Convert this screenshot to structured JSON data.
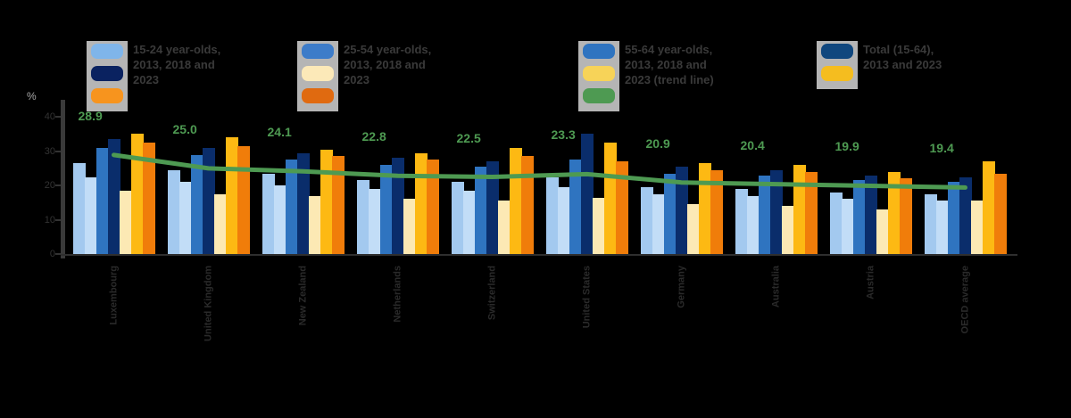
{
  "chart_data": {
    "type": "bar",
    "title": "",
    "xlabel": "",
    "ylabel": "%",
    "ylim": [
      0,
      45
    ],
    "yticks": [
      40,
      30,
      20,
      10,
      0
    ],
    "grid": false,
    "legend_position": "top",
    "categories": [
      "Luxembourg",
      "United Kingdom",
      "New Zealand",
      "Netherlands",
      "Switzerland",
      "United States",
      "Germany",
      "Australia",
      "Austria",
      "OECD average"
    ],
    "series": [
      {
        "name": "light-blue-bar",
        "color": "#A3C9EF",
        "values": [
          26.5,
          24.5,
          23.5,
          21.5,
          21.0,
          22.5,
          19.5,
          19.0,
          18.0,
          17.5
        ]
      },
      {
        "name": "pale-blue-bar",
        "color": "#C2DDF7",
        "values": [
          22.5,
          21.0,
          20.0,
          19.0,
          18.5,
          19.5,
          17.5,
          17.0,
          16.0,
          15.5
        ]
      },
      {
        "name": "medium-blue-bar",
        "color": "#2F74C0",
        "values": [
          31.0,
          29.0,
          27.5,
          26.0,
          25.5,
          27.5,
          23.5,
          23.0,
          21.5,
          21.0
        ]
      },
      {
        "name": "navy-bar",
        "color": "#0A2D6B",
        "values": [
          33.5,
          31.0,
          29.5,
          28.0,
          27.0,
          35.0,
          25.5,
          24.5,
          23.0,
          22.5
        ]
      },
      {
        "name": "cream-bar",
        "color": "#FCE9B4",
        "values": [
          18.5,
          17.5,
          17.0,
          16.0,
          15.5,
          16.5,
          14.5,
          14.0,
          13.0,
          15.5
        ]
      },
      {
        "name": "gold-bar",
        "color": "#FDB913",
        "values": [
          35.0,
          34.0,
          30.5,
          29.5,
          31.0,
          32.5,
          26.5,
          26.0,
          24.0,
          27.0
        ]
      },
      {
        "name": "orange-bar",
        "color": "#F07D0A",
        "values": [
          32.5,
          31.5,
          28.5,
          27.5,
          28.5,
          27.0,
          24.5,
          24.0,
          22.0,
          23.5
        ]
      }
    ],
    "line_series": {
      "name": "trend-line",
      "color": "#4E9A52",
      "values": [
        28.9,
        25.0,
        24.1,
        22.8,
        22.5,
        23.3,
        20.9,
        20.4,
        19.9,
        19.4
      ],
      "labels": [
        "28.9",
        "25.0",
        "24.1",
        "22.8",
        "22.5",
        "23.3",
        "20.9",
        "20.4",
        "19.9",
        "19.4"
      ]
    }
  },
  "legend": [
    {
      "swatches": [
        "#7FB5EA",
        "#0A2260",
        "#F7941E"
      ],
      "lines": [
        "15-24 year-olds,",
        "2013, 2018 and",
        "2023"
      ]
    },
    {
      "swatches": [
        "#3D7CC9",
        "#FCE9B8",
        "#E06A10"
      ],
      "lines": [
        "25-54 year-olds,",
        "2013, 2018 and",
        "2023"
      ]
    },
    {
      "swatches": [
        "#2F74C0",
        "#F7D358",
        "#4E9A52"
      ],
      "lines": [
        "55-64 year-olds,",
        "2013, 2018 and",
        "2023 (trend line)"
      ]
    },
    {
      "swatches": [
        "#10477E",
        "#F5BD1F"
      ],
      "lines": [
        "Total (15-64),",
        "2013 and 2023"
      ]
    }
  ],
  "axis": {
    "percent_label": "%"
  }
}
